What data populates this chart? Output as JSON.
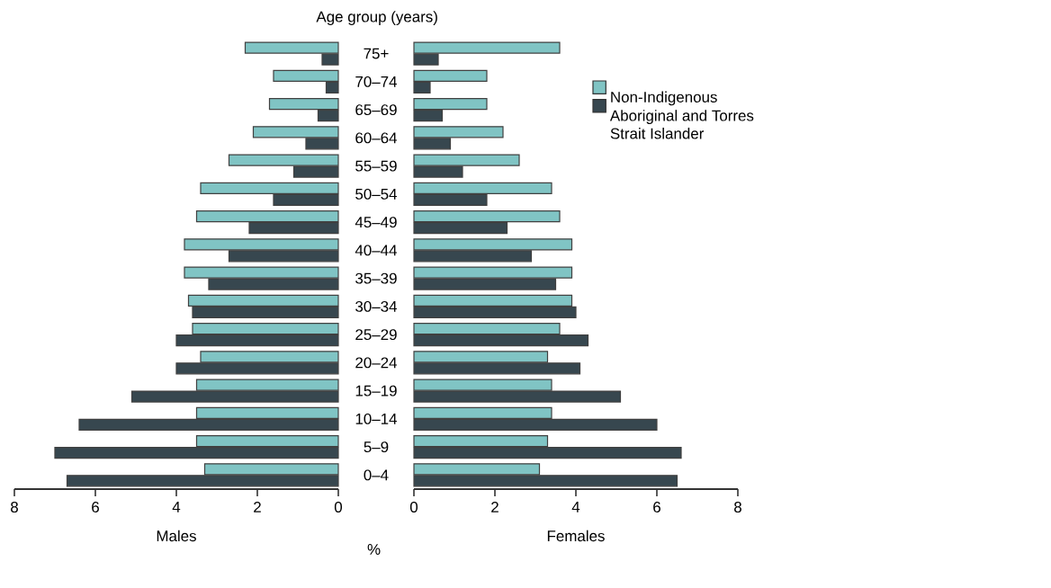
{
  "chart_data": [
    {
      "type": "bar",
      "orientation": "horizontal",
      "ylabel": "Age group (years)",
      "xlabel": "Males",
      "annotations": [
        "%"
      ],
      "categories": [
        "75+",
        "70–74",
        "65–69",
        "60–64",
        "55–59",
        "50–54",
        "45–49",
        "40–44",
        "35–39",
        "30–34",
        "25–29",
        "20–24",
        "15–19",
        "10–14",
        "5–9",
        "0–4"
      ],
      "xlim": [
        8,
        0
      ],
      "xticks": [
        8,
        6,
        4,
        2,
        0
      ],
      "series": [
        {
          "color": "#80c4c4",
          "values": [
            2.3,
            1.6,
            1.7,
            2.1,
            2.7,
            3.4,
            3.5,
            3.8,
            3.8,
            3.7,
            3.6,
            3.4,
            3.5,
            3.5,
            3.5,
            3.3
          ]
        },
        {
          "color": "#37474f",
          "values": [
            0.4,
            0.3,
            0.5,
            0.8,
            1.1,
            1.6,
            2.2,
            2.7,
            3.2,
            3.6,
            4.0,
            4.0,
            5.1,
            6.4,
            7.0,
            6.7
          ]
        }
      ]
    },
    {
      "type": "bar",
      "orientation": "horizontal",
      "xlabel": "Females",
      "categories": [
        null,
        null,
        null,
        null,
        null,
        null,
        null,
        null,
        null,
        null,
        null,
        null,
        null,
        null,
        null,
        null
      ],
      "tick_labels": "x",
      "xlim": [
        0,
        8
      ],
      "xticks": [
        0,
        2,
        4,
        6,
        8
      ],
      "legend": "top right",
      "series": [
        {
          "name": "Non-Indigenous",
          "color": "#80c4c4",
          "values": [
            3.6,
            1.8,
            1.8,
            2.2,
            2.6,
            3.4,
            3.6,
            3.9,
            3.9,
            3.9,
            3.6,
            3.3,
            3.4,
            3.4,
            3.3,
            3.1
          ]
        },
        {
          "name": "Aboriginal and Torres Strait Islander",
          "color": "#37474f",
          "values": [
            0.6,
            0.4,
            0.7,
            0.9,
            1.2,
            1.8,
            2.3,
            2.9,
            3.5,
            4.0,
            4.3,
            4.1,
            5.1,
            6.0,
            6.6,
            6.5
          ]
        }
      ]
    }
  ]
}
